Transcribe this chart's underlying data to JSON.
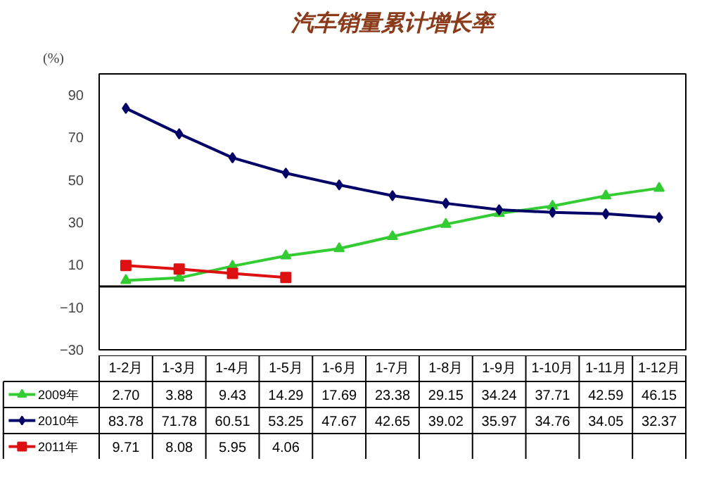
{
  "chart_data": {
    "type": "line",
    "title": "汽车销量累计增长率",
    "ylabel": "(%)",
    "categories": [
      "1-2月",
      "1-3月",
      "1-4月",
      "1-5月",
      "1-6月",
      "1-7月",
      "1-8月",
      "1-9月",
      "1-10月",
      "1-11月",
      "1-12月"
    ],
    "ylim": [
      -30,
      100
    ],
    "yticks": [
      -30,
      -10,
      10,
      30,
      50,
      70,
      90
    ],
    "legend": "bottom",
    "grid": false,
    "series": [
      {
        "name": "2009年",
        "color": "#33cc33",
        "marker": "triangle",
        "values": [
          2.7,
          3.88,
          9.43,
          14.29,
          17.69,
          23.38,
          29.15,
          34.24,
          37.71,
          42.59,
          46.15
        ],
        "value_labels": [
          "2.70",
          "3.88",
          "9.43",
          "14.29",
          "17.69",
          "23.38",
          "29.15",
          "34.24",
          "37.71",
          "42.59",
          "46.15"
        ]
      },
      {
        "name": "2010年",
        "color": "#000066",
        "marker": "diamond",
        "values": [
          83.78,
          71.78,
          60.51,
          53.25,
          47.67,
          42.65,
          39.02,
          35.97,
          34.76,
          34.05,
          32.37
        ],
        "value_labels": [
          "83.78",
          "71.78",
          "60.51",
          "53.25",
          "47.67",
          "42.65",
          "39.02",
          "35.97",
          "34.76",
          "34.05",
          "32.37"
        ]
      },
      {
        "name": "2011年",
        "color": "#dd1111",
        "marker": "square",
        "values": [
          9.71,
          8.08,
          5.95,
          4.06,
          null,
          null,
          null,
          null,
          null,
          null,
          null
        ],
        "value_labels": [
          "9.71",
          "8.08",
          "5.95",
          "4.06",
          null,
          null,
          null,
          null,
          null,
          null,
          null
        ]
      }
    ]
  }
}
